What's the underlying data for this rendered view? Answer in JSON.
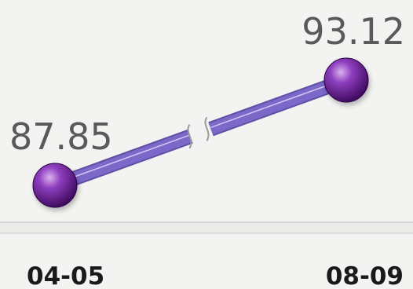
{
  "chart_data": {
    "type": "line",
    "categories": [
      "04-05",
      "08-09"
    ],
    "series": [
      {
        "values": [
          87.85,
          93.12
        ]
      }
    ],
    "data_labels": [
      "87.85",
      "93.12"
    ],
    "axis_break": true,
    "grid": false,
    "legend": "none",
    "colors": {
      "line": "#7b68c8",
      "marker": "#6a1b9a",
      "marker_highlight": "#c79be0",
      "baseline": "#cfcfcf",
      "background": "#f3f3f1"
    }
  }
}
